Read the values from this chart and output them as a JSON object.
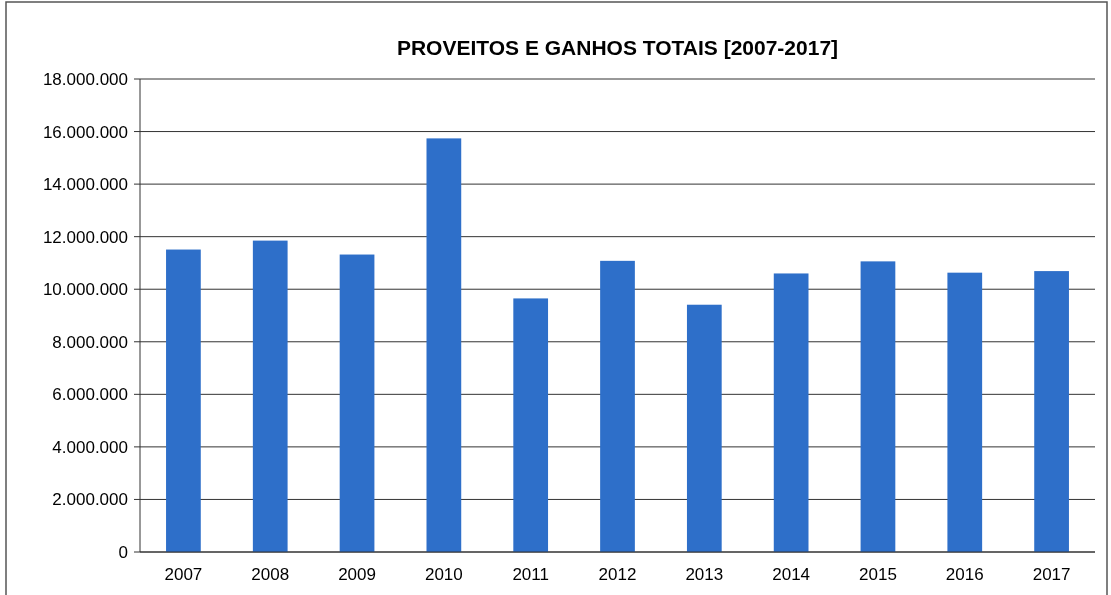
{
  "chart_data": {
    "type": "bar",
    "title": "PROVEITOS E GANHOS TOTAIS [2007-2017]",
    "categories": [
      "2007",
      "2008",
      "2009",
      "2010",
      "2011",
      "2012",
      "2013",
      "2014",
      "2015",
      "2016",
      "2017"
    ],
    "values": [
      11510000,
      11850000,
      11320000,
      15740000,
      9650000,
      11080000,
      9410000,
      10600000,
      11060000,
      10630000,
      10690000
    ],
    "color": "#2e6fc9",
    "ylim": [
      0,
      18000000
    ],
    "yticks": [
      {
        "value": 0,
        "label": "0"
      },
      {
        "value": 2000000,
        "label": "2.000.000"
      },
      {
        "value": 4000000,
        "label": "4.000.000"
      },
      {
        "value": 6000000,
        "label": "6.000.000"
      },
      {
        "value": 8000000,
        "label": "8.000.000"
      },
      {
        "value": 10000000,
        "label": "10.000.000"
      },
      {
        "value": 12000000,
        "label": "12.000.000"
      },
      {
        "value": 14000000,
        "label": "14.000.000"
      },
      {
        "value": 16000000,
        "label": "16.000.000"
      },
      {
        "value": 18000000,
        "label": "18.000.000"
      }
    ],
    "grid": "y"
  }
}
